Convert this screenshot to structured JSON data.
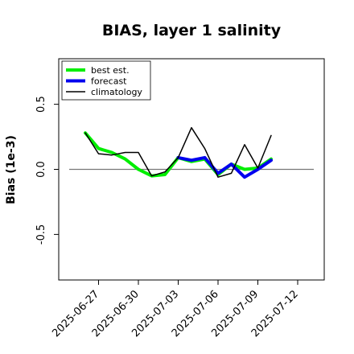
{
  "chart_data": {
    "type": "line",
    "title": "BIAS, layer 1 salinity",
    "xlabel": "",
    "ylabel": "Bias (1e-3)",
    "xlim": [
      "2025-06-24",
      "2025-07-14"
    ],
    "ylim": [
      -0.85,
      0.85
    ],
    "yticks": [
      "-0.5",
      "0.0",
      "0.5"
    ],
    "ytick_values": [
      -0.5,
      0.0,
      0.5
    ],
    "xticks": [
      "2025-06-27",
      "2025-06-30",
      "2025-07-03",
      "2025-07-06",
      "2025-07-09",
      "2025-07-12"
    ],
    "highlight_xtick": "2025-07-03",
    "highlight_color": "#228B22",
    "reference_line": 0.0,
    "legend_position": "top-left",
    "grid": false,
    "x": [
      "2025-06-26",
      "2025-06-27",
      "2025-06-28",
      "2025-06-29",
      "2025-06-30",
      "2025-07-01",
      "2025-07-02",
      "2025-07-03",
      "2025-07-04",
      "2025-07-05",
      "2025-07-06",
      "2025-07-07",
      "2025-07-08",
      "2025-07-09",
      "2025-07-10"
    ],
    "series": [
      {
        "name": "best est.",
        "color": "#00ee00",
        "width": 4,
        "values": [
          0.28,
          0.16,
          0.13,
          0.08,
          0.0,
          -0.05,
          -0.04,
          0.09,
          0.06,
          0.08,
          -0.04,
          0.04,
          0.0,
          0.01,
          0.08
        ]
      },
      {
        "name": "forecast",
        "color": "#0000ee",
        "width": 4,
        "values": [
          null,
          null,
          null,
          null,
          null,
          null,
          null,
          0.09,
          0.07,
          0.09,
          -0.03,
          0.04,
          -0.06,
          0.0,
          0.07
        ]
      },
      {
        "name": "climatology",
        "color": "#000000",
        "width": 1.5,
        "values": [
          0.28,
          0.12,
          0.11,
          0.13,
          0.13,
          -0.05,
          -0.02,
          0.09,
          0.32,
          0.16,
          -0.06,
          -0.03,
          0.19,
          0.01,
          0.26
        ]
      }
    ]
  }
}
